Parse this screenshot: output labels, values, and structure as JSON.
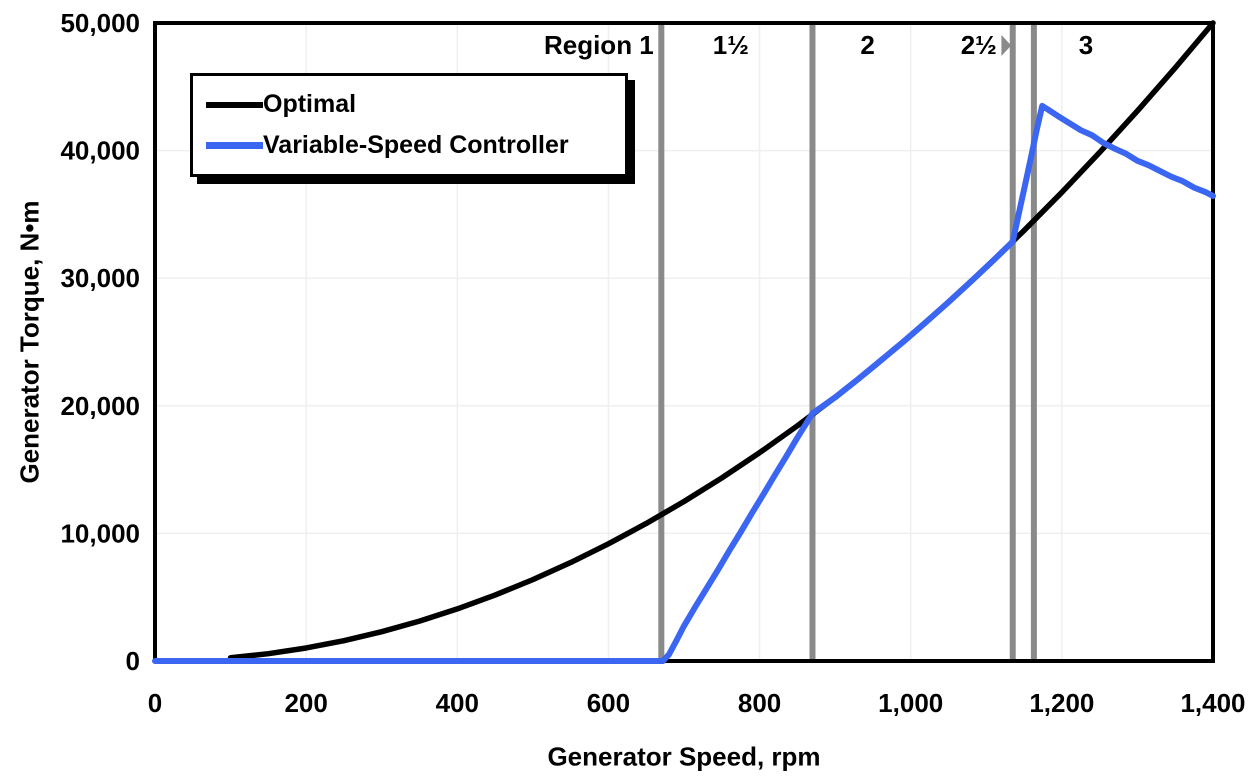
{
  "chart_data": {
    "type": "line",
    "title": "",
    "x_axis": {
      "label": "Generator Speed, rpm",
      "min": 0,
      "max": 1400,
      "ticks": [
        {
          "value": 0,
          "label": "0"
        },
        {
          "value": 200,
          "label": "200"
        },
        {
          "value": 400,
          "label": "400"
        },
        {
          "value": 600,
          "label": "600"
        },
        {
          "value": 800,
          "label": "800"
        },
        {
          "value": 1000,
          "label": "1,000"
        },
        {
          "value": 1200,
          "label": "1,200"
        },
        {
          "value": 1400,
          "label": "1,400"
        }
      ]
    },
    "y_axis": {
      "label": "Generator Torque, N•m",
      "min": 0,
      "max": 50000,
      "ticks": [
        {
          "value": 0,
          "label": "0"
        },
        {
          "value": 10000,
          "label": "10,000"
        },
        {
          "value": 20000,
          "label": "20,000"
        },
        {
          "value": 30000,
          "label": "30,000"
        },
        {
          "value": 40000,
          "label": "40,000"
        },
        {
          "value": 50000,
          "label": "50,000"
        }
      ]
    },
    "grid": {
      "color": "#efefef",
      "x_step": 200,
      "y_step": 10000
    },
    "legend": {
      "position": "top-left",
      "items": [
        {
          "label": "Optimal",
          "color": "#000000",
          "thickness": 6
        },
        {
          "label": "Variable-Speed Controller",
          "color": "#3a66f2",
          "thickness": 7
        }
      ]
    },
    "regions": {
      "line_color": "#8a8a8a",
      "text_color": "#8a8a8a",
      "boundary_lines_rpm": [
        670,
        870,
        1135,
        1163
      ],
      "labels": [
        {
          "text": "Region 1",
          "rpm": 660,
          "anchor": "end"
        },
        {
          "text": "1½",
          "rpm": 762,
          "anchor": "middle"
        },
        {
          "text": "2",
          "rpm": 943,
          "anchor": "middle"
        },
        {
          "text": "2½",
          "rpm": 1114,
          "anchor": "end"
        },
        {
          "text": "3",
          "rpm": 1232,
          "anchor": "middle"
        }
      ],
      "arrow": {
        "from_rpm": 1120,
        "tip_rpm": 1133
      }
    },
    "series": [
      {
        "name": "Optimal",
        "color": "#000000",
        "width": 5.5,
        "points": [
          [
            100,
            255
          ],
          [
            150,
            574
          ],
          [
            200,
            1020
          ],
          [
            250,
            1594
          ],
          [
            300,
            2296
          ],
          [
            350,
            3125
          ],
          [
            400,
            4082
          ],
          [
            450,
            5166
          ],
          [
            500,
            6378
          ],
          [
            550,
            7716
          ],
          [
            600,
            9184
          ],
          [
            650,
            10778
          ],
          [
            700,
            12500
          ],
          [
            750,
            14349
          ],
          [
            800,
            16327
          ],
          [
            850,
            18431
          ],
          [
            900,
            20663
          ],
          [
            950,
            23022
          ],
          [
            1000,
            25510
          ],
          [
            1050,
            28125
          ],
          [
            1100,
            30867
          ],
          [
            1150,
            33738
          ],
          [
            1200,
            36735
          ],
          [
            1250,
            39860
          ],
          [
            1300,
            43112
          ],
          [
            1350,
            46492
          ],
          [
            1400,
            50000
          ]
        ]
      },
      {
        "name": "Variable-Speed Controller",
        "color": "#3a66f2",
        "width": 6,
        "points": [
          [
            0,
            0
          ],
          [
            80,
            0
          ],
          [
            160,
            0
          ],
          [
            240,
            0
          ],
          [
            320,
            0
          ],
          [
            400,
            0
          ],
          [
            480,
            0
          ],
          [
            560,
            0
          ],
          [
            620,
            0
          ],
          [
            660,
            0
          ],
          [
            672,
            0
          ],
          [
            680,
            500
          ],
          [
            690,
            1600
          ],
          [
            700,
            2750
          ],
          [
            715,
            4250
          ],
          [
            730,
            5700
          ],
          [
            745,
            7150
          ],
          [
            760,
            8650
          ],
          [
            775,
            10100
          ],
          [
            790,
            11600
          ],
          [
            805,
            13050
          ],
          [
            820,
            14550
          ],
          [
            835,
            16000
          ],
          [
            850,
            17500
          ],
          [
            860,
            18450
          ],
          [
            870,
            19400
          ],
          [
            900,
            20663
          ],
          [
            930,
            22066
          ],
          [
            960,
            23534
          ],
          [
            990,
            25004
          ],
          [
            1020,
            26546
          ],
          [
            1050,
            28125
          ],
          [
            1080,
            29757
          ],
          [
            1110,
            31430
          ],
          [
            1135,
            32860
          ],
          [
            1145,
            35600
          ],
          [
            1152,
            37500
          ],
          [
            1160,
            39700
          ],
          [
            1167,
            41700
          ],
          [
            1174,
            43500
          ],
          [
            1180,
            43280
          ],
          [
            1195,
            42700
          ],
          [
            1210,
            42150
          ],
          [
            1225,
            41600
          ],
          [
            1240,
            41200
          ],
          [
            1255,
            40600
          ],
          [
            1270,
            40150
          ],
          [
            1285,
            39750
          ],
          [
            1300,
            39200
          ],
          [
            1315,
            38850
          ],
          [
            1330,
            38400
          ],
          [
            1345,
            37950
          ],
          [
            1360,
            37600
          ],
          [
            1375,
            37100
          ],
          [
            1390,
            36750
          ],
          [
            1400,
            36450
          ]
        ]
      }
    ]
  }
}
